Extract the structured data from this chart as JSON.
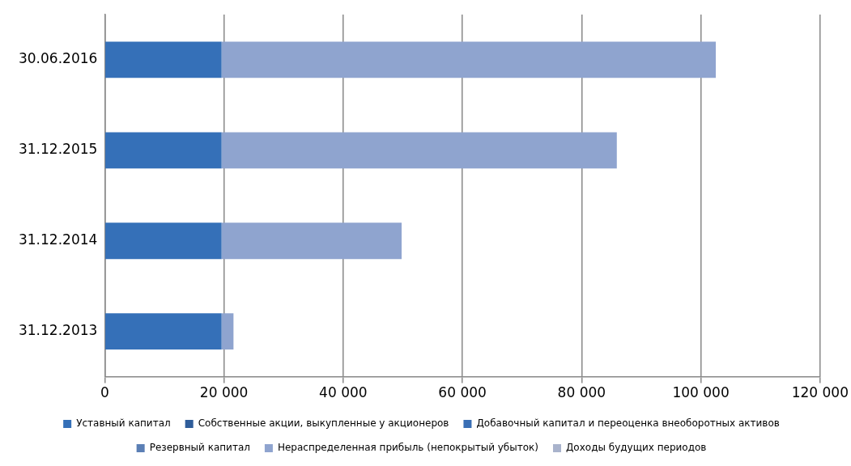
{
  "chart_data": {
    "type": "bar",
    "orientation": "horizontal",
    "stacked": true,
    "categories": [
      "30.06.2016",
      "31.12.2015",
      "31.12.2014",
      "31.12.2013"
    ],
    "series": [
      {
        "name": "Уставный капитал",
        "color": "#3570b8",
        "values": [
          19600,
          19600,
          19600,
          19600
        ]
      },
      {
        "name": "Собственные акции, выкупленные у акционеров",
        "color": "#2f5d9a",
        "values": [
          0,
          0,
          0,
          0
        ]
      },
      {
        "name": "Добавочный капитал и переоценка внеоборотных активов",
        "color": "#3a6fb5",
        "values": [
          0,
          0,
          0,
          0
        ]
      },
      {
        "name": "Резервный капитал",
        "color": "#5b7fb5",
        "values": [
          0,
          0,
          0,
          0
        ]
      },
      {
        "name": "Нераспределенная прибыль (непокрытый убыток)",
        "color": "#8fa4cf",
        "values": [
          82900,
          66300,
          30200,
          2000
        ]
      },
      {
        "name": "Доходы будущих периодов",
        "color": "#a9b3cc",
        "values": [
          0,
          0,
          0,
          0
        ]
      }
    ],
    "xlim": [
      0,
      120000
    ],
    "xticks": [
      {
        "value": 0,
        "label": "0"
      },
      {
        "value": 20000,
        "label": "20 000"
      },
      {
        "value": 40000,
        "label": "40 000"
      },
      {
        "value": 60000,
        "label": "60 000"
      },
      {
        "value": 80000,
        "label": "80 000"
      },
      {
        "value": 100000,
        "label": "100 000"
      },
      {
        "value": 120000,
        "label": "120 000"
      }
    ],
    "grid": "x",
    "legend": "bottom"
  }
}
